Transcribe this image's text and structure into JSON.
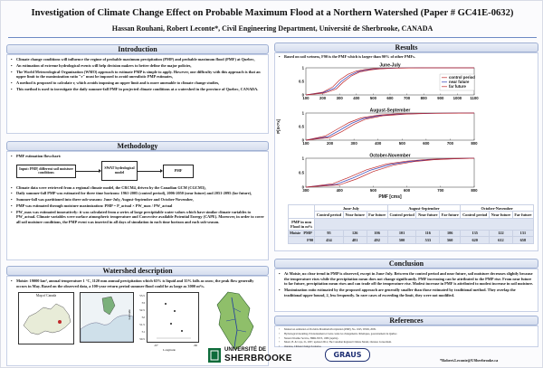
{
  "title": "Investigation of Climate Change Effect on Probable Maximum Flood at a Northern Watershed (Paper # GC41E-0632)",
  "authors": "Hassan Rouhani, Robert Leconte*, Civil Engineering Department, Université de Sherbrooke, CANADA",
  "introduction": {
    "heading": "Introduction",
    "bullets": [
      "Climate change conditions will influence the regime of probable maximum precipitation (PMP) and probable maximum flood (PMF) at Quebec,",
      "An estimation of extreme hydrological events will help decision makers to better define the major policies,",
      "The World Meteorological Organization (WMO) approach to estimate PMP is simple to apply. However, one difficulty with this approach is that an upper limit to the maximization ratio \"r\" must be imposed to avoid unrealistic PMP estimates,",
      "A method is proposed to calculate r, which avoids imposing an upper limit and is more amenable to climate change studies,",
      "This method is used to investigate the daily summer-fall PMF in projected climate conditions at a watershed in the province of Quebec, CANADA."
    ]
  },
  "methodology": {
    "heading": "Methodology",
    "flowchart_label": "PMF estimation flowchart:",
    "flow_input": "Input: PMP, different soil moisture conditions",
    "flow_model": "SWAT hydrological model",
    "flow_output": "PMF",
    "bullets": [
      "Climate data were retrieved from a regional climate model, the CRCM4, driven by the Canadian GCM (CGCM3),",
      "Daily summer-fall PMP was estimated for three time horizons: 1961-2005 (control period), 2006-2050 (near future) and 2051-2095 (far future),",
      "Summer-fall was partitioned into three sub-seasons: June-July, August-September and October-November,",
      "PMP was estimated through moisture maximization: PMP = P_actual × PW_max / PW_actual",
      "PW_max was estimated innovatively: it was calculated from a series of large precipitable water values which have similar climate variables to PW_actual. Climate variables were surface atmospheric temperature and Convective available Potential Energy (CAPE). Moreover, in order to cover all soil moisture conditions, the PMP event was inserted in all days of simulation in each time horizon and each sub-season."
    ]
  },
  "watershed": {
    "heading": "Watershed description",
    "bullets": [
      "Moisie: 19000 km², annual temperature 1 °C, 1120 mm annual precipitation which 65% is liquid and 35% falls as snow, the peak flow generally occurs in May. Based on the observed data, a 100-year return period summer flood could be as large as 3000 m³/s."
    ],
    "map_title": "Map of Canada",
    "lat_ticks": [
      "53.5",
      "53",
      "52.5",
      "52",
      "51.5",
      "51",
      "50.5"
    ],
    "lon_ticks": [
      "-67",
      "-66"
    ],
    "lat_label": "Latitude",
    "lon_label": "Longitude"
  },
  "results": {
    "heading": "Results",
    "bullets": [
      "Based on soil wetness, F90 is the PMF which is larger than 90% of other PMFs."
    ],
    "ylabel": "P[X<=x]",
    "xlabel": "PMF [cms]",
    "table": {
      "col_groups": [
        "June-July",
        "August-September",
        "October-November"
      ],
      "sub_headers": [
        "Control period",
        "Near future",
        "Far future",
        "Control period",
        "Near future",
        "Far future",
        "Control period",
        "Near future",
        "Far future"
      ],
      "row_head_1": "PMP in mm",
      "row_head_2": "Flood in m³/s",
      "basin": "Moisie",
      "rows": [
        {
          "label": "PMP",
          "values": [
            "95",
            "126",
            "106",
            "101",
            "116",
            "106",
            "135",
            "122",
            "131"
          ]
        },
        {
          "label": "F90",
          "values": [
            "434",
            "481",
            "492",
            "500",
            "533",
            "560",
            "620",
            "612",
            "658"
          ]
        }
      ]
    }
  },
  "chart_data": [
    {
      "type": "line",
      "title": "June-July",
      "xlabel": "",
      "ylabel": "P[X<=x]",
      "xlim": [
        100,
        1100
      ],
      "ylim": [
        0,
        1
      ],
      "x_ticks": [
        100,
        200,
        300,
        400,
        500,
        600,
        700,
        800,
        900,
        1000,
        1100
      ],
      "y_ticks": [
        0,
        0.5,
        1
      ],
      "legend_position": "right",
      "series": [
        {
          "name": "control period",
          "color": "#c0282a",
          "x": [
            100,
            200,
            260,
            300,
            350,
            400,
            450,
            500,
            600,
            800,
            1100
          ],
          "y": [
            0,
            0.1,
            0.3,
            0.55,
            0.76,
            0.88,
            0.94,
            0.97,
            0.99,
            1,
            1
          ]
        },
        {
          "name": "near future",
          "color": "#2a3bb6",
          "x": [
            100,
            200,
            270,
            310,
            360,
            410,
            470,
            520,
            620,
            800,
            1100
          ],
          "y": [
            0,
            0.08,
            0.25,
            0.5,
            0.72,
            0.86,
            0.93,
            0.96,
            0.99,
            1,
            1
          ]
        },
        {
          "name": "far future",
          "color": "#c0282a",
          "x": [
            100,
            210,
            280,
            320,
            370,
            420,
            480,
            540,
            640,
            800,
            1100
          ],
          "y": [
            0,
            0.07,
            0.22,
            0.46,
            0.7,
            0.85,
            0.92,
            0.96,
            0.99,
            1,
            1
          ]
        }
      ]
    },
    {
      "type": "line",
      "title": "August-September",
      "xlabel": "",
      "ylabel": "P[X<=x]",
      "xlim": [
        100,
        800
      ],
      "ylim": [
        0,
        1
      ],
      "x_ticks": [
        100,
        200,
        300,
        400,
        500,
        600,
        700,
        800
      ],
      "y_ticks": [
        0,
        0.5,
        1
      ],
      "series": [
        {
          "name": "control period",
          "color": "#c0282a",
          "x": [
            100,
            180,
            230,
            280,
            330,
            400,
            480,
            600,
            800
          ],
          "y": [
            0,
            0.15,
            0.4,
            0.65,
            0.82,
            0.92,
            0.97,
            0.99,
            1
          ]
        },
        {
          "name": "near future",
          "color": "#2a3bb6",
          "x": [
            100,
            190,
            240,
            290,
            340,
            410,
            500,
            620,
            800
          ],
          "y": [
            0,
            0.12,
            0.36,
            0.62,
            0.8,
            0.91,
            0.96,
            0.99,
            1
          ]
        },
        {
          "name": "far future",
          "color": "#c0282a",
          "x": [
            100,
            200,
            250,
            300,
            350,
            420,
            520,
            640,
            800
          ],
          "y": [
            0,
            0.1,
            0.32,
            0.58,
            0.78,
            0.9,
            0.96,
            0.99,
            1
          ]
        }
      ]
    },
    {
      "type": "line",
      "title": "October-November",
      "xlabel": "PMF [cms]",
      "ylabel": "P[X<=x]",
      "xlim": [
        300,
        800
      ],
      "ylim": [
        0,
        1
      ],
      "x_ticks": [
        300,
        400,
        500,
        600,
        700,
        800
      ],
      "y_ticks": [
        0,
        0.5,
        1
      ],
      "series": [
        {
          "name": "control period",
          "color": "#c0282a",
          "x": [
            300,
            380,
            430,
            480,
            540,
            600,
            660,
            720,
            800
          ],
          "y": [
            0,
            0.12,
            0.35,
            0.6,
            0.8,
            0.9,
            0.96,
            0.99,
            1
          ]
        },
        {
          "name": "near future",
          "color": "#2a3bb6",
          "x": [
            300,
            390,
            440,
            490,
            550,
            610,
            670,
            730,
            800
          ],
          "y": [
            0,
            0.1,
            0.32,
            0.58,
            0.78,
            0.89,
            0.95,
            0.98,
            1
          ]
        },
        {
          "name": "far future",
          "color": "#c0282a",
          "x": [
            300,
            400,
            450,
            500,
            560,
            620,
            680,
            740,
            800
          ],
          "y": [
            0,
            0.08,
            0.28,
            0.54,
            0.76,
            0.88,
            0.95,
            0.98,
            1
          ]
        }
      ]
    }
  ],
  "conclusion": {
    "heading": "Conclusion",
    "bullets": [
      "At Moisie, no clear trend in PMP is observed, except in June-July. Between the control period and near future, soil moisture decreases slightly because the temperature rises while the precipitation mean does not change significantly. PMF increasing can be attributed to the PMP rise. From near future to far future, precipitation mean rises and can trade off the temperature rise. Modest increase in PMF is attributed to modest increase in soil moisture.",
      "Maximization ratio estimated by the proposed approach are generally smaller than those estimated by traditional method. They overlap the traditional upper bound, 2, less frequently. In rare cases of exceeding the limit, they were not modified."
    ]
  },
  "references": {
    "heading": "References",
    "items": [
      "Manual on estimation of Probable Maximum Precipitation (PMP), No. 1045, WMO, 2009.",
      "Hydrological modeling, Environnement et Lutte contre les changements climatiques, gouvernement du Québec.",
      "Natural Weather Service, HMR-NWS, 1986 (reprint).",
      "Music, B. & Caya, D., 2007, updated 2014, The Canadian Regional Climate Model, Ouranos Consortium.",
      "Ouranos, Climate Change Scenarios."
    ]
  },
  "footer": {
    "university_line1": "UNIVERSITÉ DE",
    "university_line2": "SHERBROOKE",
    "partner_logo": "GRAUS",
    "email": "*Robert.Leconte@USherbrooke.ca"
  }
}
